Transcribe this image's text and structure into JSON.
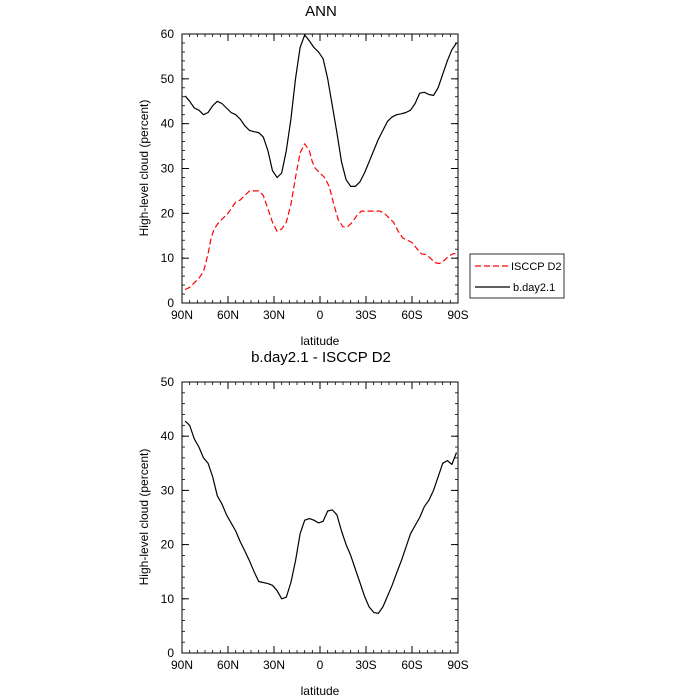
{
  "chart_data": [
    {
      "type": "line",
      "title": "ANN",
      "xlabel": "latitude",
      "ylabel": "High-level cloud (percent)",
      "xlim": [
        90,
        -90
      ],
      "ylim": [
        0,
        60
      ],
      "x_ticks": [
        90,
        60,
        30,
        0,
        -30,
        -60,
        -90
      ],
      "x_tick_labels": [
        "90N",
        "60N",
        "30N",
        "0",
        "30S",
        "60S",
        "90S"
      ],
      "y_ticks": [
        0,
        10,
        20,
        30,
        40,
        50,
        60
      ],
      "y_tick_labels": [
        "0",
        "10",
        "20",
        "30",
        "40",
        "50",
        "60"
      ],
      "legend_position": "right",
      "series": [
        {
          "name": "ISCCP D2",
          "color": "#ff0000",
          "dash": "dashed",
          "x": [
            88,
            85,
            82,
            79,
            76,
            73,
            71,
            69,
            66,
            63,
            60,
            57,
            55,
            52,
            49,
            46,
            43,
            40,
            37,
            34,
            31,
            28,
            25,
            22,
            19,
            16,
            13,
            10,
            7,
            5,
            3,
            0,
            -3,
            -6,
            -9,
            -12,
            -15,
            -18,
            -21,
            -24,
            -27,
            -30,
            -33,
            -36,
            -39,
            -42,
            -45,
            -48,
            -51,
            -54,
            -57,
            -60,
            -63,
            -66,
            -69,
            -72,
            -75,
            -78,
            -81,
            -84,
            -87,
            -89
          ],
          "y": [
            3,
            3.5,
            4.5,
            5.5,
            7,
            11,
            14.5,
            16.5,
            18,
            19,
            20,
            21.5,
            22.5,
            23,
            24,
            25,
            25,
            25,
            24,
            21,
            18,
            16,
            16.5,
            18,
            22,
            28,
            33.5,
            35.5,
            34,
            31.5,
            30,
            29,
            28,
            26,
            22,
            18.5,
            17,
            17,
            18,
            19.5,
            20.5,
            20.5,
            20.5,
            20.5,
            20.5,
            20,
            19,
            18,
            16,
            14.5,
            14,
            13.5,
            12.2,
            11,
            10.8,
            10,
            9,
            8.8,
            9.5,
            10.5,
            11,
            11
          ]
        },
        {
          "name": "b.day2.1",
          "color": "#000000",
          "dash": "solid",
          "x": [
            88,
            85,
            82,
            79,
            76,
            73,
            70,
            67,
            64,
            61,
            58,
            55,
            52,
            49,
            46,
            43,
            40,
            37,
            34,
            31,
            28,
            25,
            22,
            19,
            16,
            13,
            10,
            7,
            4,
            1,
            -2,
            -5,
            -8,
            -11,
            -14,
            -17,
            -20,
            -23,
            -26,
            -29,
            -32,
            -35,
            -38,
            -41,
            -44,
            -47,
            -50,
            -53,
            -56,
            -59,
            -62,
            -65,
            -68,
            -71,
            -74,
            -77,
            -80,
            -83,
            -86,
            -89
          ],
          "y": [
            46.2,
            45,
            43.5,
            43,
            42,
            42.5,
            44,
            45,
            44.5,
            43.5,
            42.5,
            42,
            41,
            39.5,
            38.5,
            38.2,
            38,
            37,
            34,
            29.5,
            28,
            29,
            34,
            41,
            50,
            57,
            59.8,
            58.5,
            57,
            56,
            54.5,
            50,
            44,
            38,
            31.5,
            27.5,
            26,
            26,
            27,
            29,
            31.5,
            34,
            36.5,
            38.5,
            40.5,
            41.5,
            42,
            42.2,
            42.5,
            43,
            44.5,
            46.8,
            47,
            46.5,
            46.3,
            48,
            51,
            54,
            56.5,
            58
          ]
        }
      ]
    },
    {
      "type": "line",
      "title": "b.day2.1 - ISCCP D2",
      "xlabel": "latitude",
      "ylabel": "High-level cloud (percent)",
      "xlim": [
        90,
        -90
      ],
      "ylim": [
        0,
        50
      ],
      "x_ticks": [
        90,
        60,
        30,
        0,
        -30,
        -60,
        -90
      ],
      "x_tick_labels": [
        "90N",
        "60N",
        "30N",
        "0",
        "30S",
        "60S",
        "90S"
      ],
      "y_ticks": [
        0,
        10,
        20,
        30,
        40,
        50
      ],
      "y_tick_labels": [
        "0",
        "10",
        "20",
        "30",
        "40",
        "50"
      ],
      "series": [
        {
          "color": "#000000",
          "dash": "solid",
          "x": [
            88,
            85,
            82,
            79,
            76,
            73,
            70,
            67,
            64,
            61,
            58,
            55,
            52,
            49,
            46,
            43,
            40,
            37,
            34,
            31,
            28,
            25,
            22,
            19,
            16,
            13,
            10,
            7,
            4,
            1,
            -2,
            -5,
            -8,
            -11,
            -14,
            -17,
            -20,
            -23,
            -26,
            -29,
            -32,
            -35,
            -38,
            -41,
            -44,
            -47,
            -50,
            -53,
            -56,
            -59,
            -62,
            -65,
            -68,
            -71,
            -74,
            -77,
            -80,
            -83,
            -86,
            -89
          ],
          "y": [
            42.8,
            42,
            39.5,
            38,
            36,
            35,
            32.5,
            29,
            27.5,
            25.5,
            24,
            22.5,
            20.5,
            18.8,
            17,
            15,
            13.2,
            13,
            12.8,
            12.5,
            11.5,
            10,
            10.3,
            13,
            17,
            22,
            24.5,
            24.8,
            24.5,
            24,
            24.3,
            26.2,
            26.4,
            25.5,
            22.5,
            20,
            18,
            15.5,
            13,
            10.5,
            8.5,
            7.5,
            7.3,
            8.5,
            10.5,
            12.5,
            14.8,
            17,
            19.5,
            22,
            23.5,
            25,
            27,
            28.2,
            30,
            32.5,
            35,
            35.5,
            34.8,
            37
          ]
        }
      ]
    }
  ]
}
